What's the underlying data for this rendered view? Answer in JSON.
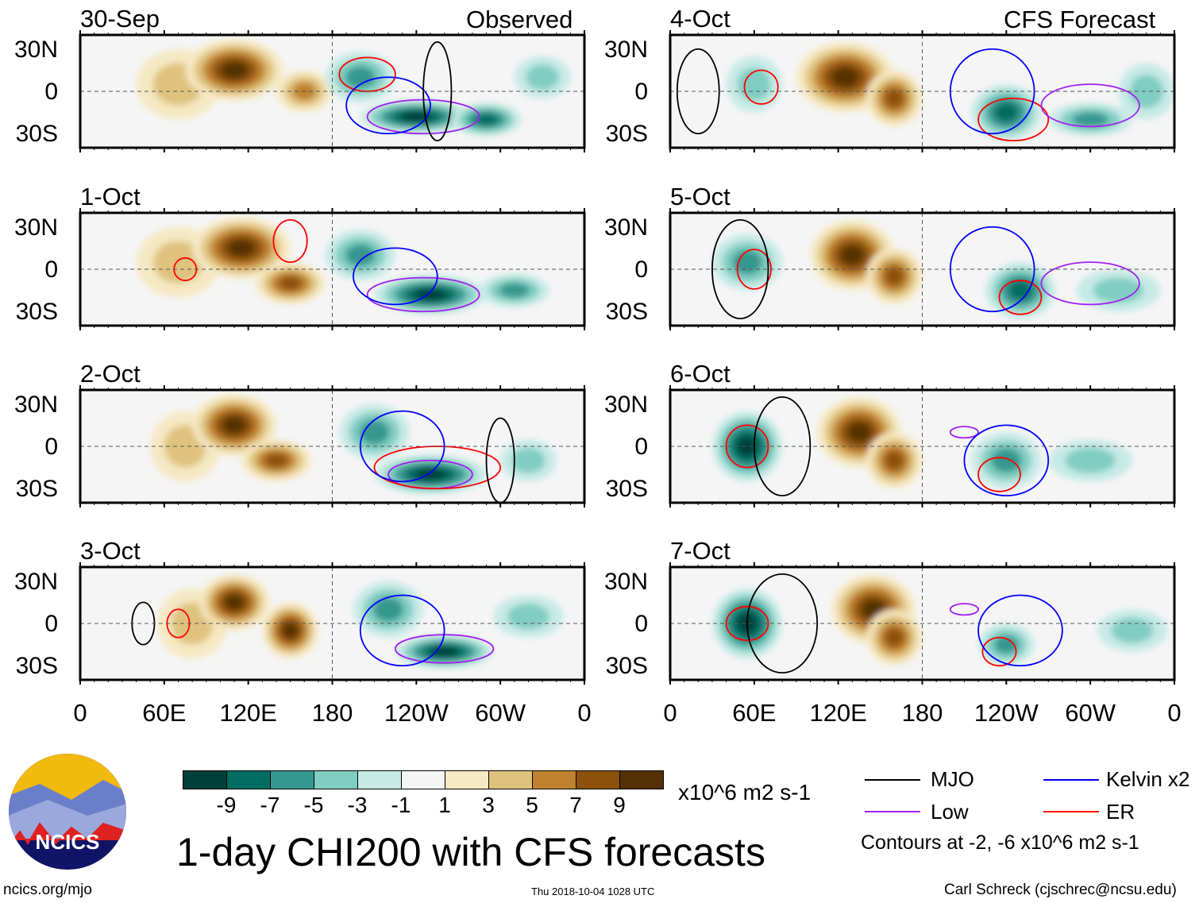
{
  "header": {
    "left_label": "Observed",
    "right_label": "CFS Forecast"
  },
  "y_ticks": [
    "30N",
    "0",
    "30S"
  ],
  "x_ticks": [
    "0",
    "60E",
    "120E",
    "180",
    "120W",
    "60W",
    "0"
  ],
  "colorbar": {
    "colors": [
      "#01403a",
      "#016c62",
      "#35978f",
      "#80cdc1",
      "#c7eae5",
      "#f5f5f5",
      "#f6e8c3",
      "#dfc27d",
      "#bf812d",
      "#8c510a",
      "#543005"
    ],
    "labels": [
      "-9",
      "-7",
      "-5",
      "-3",
      "-1",
      "1",
      "3",
      "5",
      "7",
      "9"
    ],
    "units": "x10^6 m2 s-1"
  },
  "legend": {
    "mjo": "MJO",
    "kelvin": "Kelvin x2",
    "low": "Low",
    "er": "ER",
    "note": "Contours at -2, -6 x10^6 m2 s-1",
    "colors": {
      "mjo": "#000000",
      "kelvin": "#0000ff",
      "low": "#a020f0",
      "er": "#ff0000"
    }
  },
  "title": "1-day CHI200 with CFS forecasts",
  "footer": {
    "url": "ncics.org/mjo",
    "timestamp": "Thu 2018-10-04 1028 UTC",
    "credit": "Carl Schreck (cjschrec@ncsu.edu)"
  },
  "logo": {
    "text": "NCICS"
  },
  "chart_data": {
    "type": "heatmap",
    "lon_range": [
      0,
      360
    ],
    "lat_range": [
      -40,
      40
    ],
    "panels": [
      {
        "date": "30-Sep",
        "kind": "observed",
        "blobs": [
          [
            70,
            5,
            30,
            25,
            3
          ],
          [
            110,
            15,
            35,
            22,
            9
          ],
          [
            160,
            0,
            20,
            15,
            5
          ],
          [
            200,
            10,
            25,
            18,
            -5
          ],
          [
            240,
            -18,
            40,
            12,
            -9
          ],
          [
            290,
            -20,
            25,
            12,
            -7
          ],
          [
            330,
            10,
            20,
            15,
            -3
          ]
        ],
        "contours": [
          [
            205,
            12,
            20,
            12,
            "er"
          ],
          [
            245,
            -18,
            40,
            12,
            "low"
          ],
          [
            220,
            -10,
            30,
            20,
            "kelvin"
          ],
          [
            255,
            0,
            10,
            35,
            "mjo"
          ]
        ]
      },
      {
        "date": "1-Oct",
        "kind": "observed",
        "blobs": [
          [
            70,
            5,
            30,
            25,
            3
          ],
          [
            115,
            15,
            35,
            22,
            9
          ],
          [
            150,
            -10,
            25,
            15,
            7
          ],
          [
            200,
            10,
            25,
            18,
            -5
          ],
          [
            250,
            -18,
            40,
            14,
            -9
          ],
          [
            310,
            -15,
            25,
            12,
            -5
          ]
        ],
        "contours": [
          [
            245,
            -18,
            40,
            12,
            "low"
          ],
          [
            225,
            -5,
            30,
            20,
            "kelvin"
          ],
          [
            150,
            20,
            12,
            15,
            "er"
          ],
          [
            75,
            0,
            8,
            8,
            "er"
          ]
        ]
      },
      {
        "date": "2-Oct",
        "kind": "observed",
        "blobs": [
          [
            75,
            0,
            25,
            25,
            3
          ],
          [
            110,
            15,
            30,
            22,
            9
          ],
          [
            140,
            -10,
            25,
            15,
            7
          ],
          [
            210,
            10,
            25,
            20,
            -5
          ],
          [
            250,
            -20,
            40,
            14,
            -9
          ],
          [
            320,
            -10,
            20,
            15,
            -3
          ]
        ],
        "contours": [
          [
            250,
            -20,
            30,
            10,
            "low"
          ],
          [
            255,
            -15,
            45,
            15,
            "er"
          ],
          [
            230,
            0,
            30,
            25,
            "kelvin"
          ],
          [
            300,
            -10,
            10,
            30,
            "mjo"
          ]
        ]
      },
      {
        "date": "3-Oct",
        "kind": "observed",
        "blobs": [
          [
            80,
            0,
            25,
            25,
            3
          ],
          [
            110,
            15,
            25,
            20,
            9
          ],
          [
            150,
            -5,
            20,
            20,
            9
          ],
          [
            220,
            10,
            25,
            20,
            -5
          ],
          [
            260,
            -20,
            35,
            12,
            -9
          ],
          [
            320,
            5,
            25,
            15,
            -3
          ]
        ],
        "contours": [
          [
            260,
            -18,
            35,
            10,
            "low"
          ],
          [
            70,
            0,
            8,
            10,
            "er"
          ],
          [
            230,
            -5,
            30,
            25,
            "kelvin"
          ],
          [
            45,
            0,
            8,
            15,
            "mjo"
          ]
        ]
      },
      {
        "date": "4-Oct",
        "kind": "forecast",
        "blobs": [
          [
            60,
            5,
            20,
            20,
            -3
          ],
          [
            125,
            10,
            35,
            25,
            9
          ],
          [
            160,
            -5,
            20,
            20,
            7
          ],
          [
            240,
            -15,
            25,
            20,
            -7
          ],
          [
            300,
            -20,
            30,
            12,
            -5
          ],
          [
            340,
            0,
            20,
            20,
            -3
          ]
        ],
        "contours": [
          [
            65,
            3,
            12,
            12,
            "er"
          ],
          [
            245,
            -20,
            25,
            15,
            "er"
          ],
          [
            300,
            -10,
            35,
            15,
            "low"
          ],
          [
            230,
            0,
            30,
            30,
            "kelvin"
          ],
          [
            20,
            0,
            15,
            30,
            "mjo"
          ]
        ]
      },
      {
        "date": "5-Oct",
        "kind": "forecast",
        "blobs": [
          [
            55,
            5,
            25,
            20,
            -5
          ],
          [
            130,
            10,
            30,
            25,
            9
          ],
          [
            160,
            -5,
            20,
            20,
            7
          ],
          [
            250,
            -15,
            25,
            20,
            -7
          ],
          [
            320,
            -15,
            30,
            15,
            -3
          ]
        ],
        "contours": [
          [
            60,
            0,
            12,
            14,
            "er"
          ],
          [
            250,
            -20,
            15,
            12,
            "er"
          ],
          [
            300,
            -10,
            35,
            15,
            "low"
          ],
          [
            230,
            0,
            30,
            30,
            "kelvin"
          ],
          [
            50,
            0,
            20,
            35,
            "mjo"
          ]
        ]
      },
      {
        "date": "6-Oct",
        "kind": "forecast",
        "blobs": [
          [
            55,
            0,
            25,
            25,
            -9
          ],
          [
            135,
            10,
            30,
            25,
            9
          ],
          [
            160,
            -10,
            20,
            20,
            7
          ],
          [
            240,
            -10,
            25,
            20,
            -5
          ],
          [
            300,
            -10,
            30,
            15,
            -3
          ]
        ],
        "contours": [
          [
            55,
            0,
            15,
            15,
            "er"
          ],
          [
            235,
            -20,
            15,
            12,
            "er"
          ],
          [
            210,
            10,
            10,
            4,
            "low"
          ],
          [
            240,
            -10,
            30,
            25,
            "kelvin"
          ],
          [
            80,
            0,
            20,
            35,
            "mjo"
          ]
        ]
      },
      {
        "date": "7-Oct",
        "kind": "forecast",
        "blobs": [
          [
            55,
            0,
            25,
            25,
            -9
          ],
          [
            145,
            10,
            30,
            25,
            9
          ],
          [
            160,
            -10,
            20,
            20,
            7
          ],
          [
            240,
            -15,
            20,
            15,
            -5
          ],
          [
            330,
            -5,
            25,
            15,
            -3
          ]
        ],
        "contours": [
          [
            55,
            0,
            15,
            12,
            "er"
          ],
          [
            235,
            -20,
            12,
            10,
            "er"
          ],
          [
            210,
            10,
            10,
            4,
            "low"
          ],
          [
            250,
            -5,
            30,
            25,
            "kelvin"
          ],
          [
            80,
            0,
            25,
            35,
            "mjo"
          ]
        ]
      }
    ]
  }
}
